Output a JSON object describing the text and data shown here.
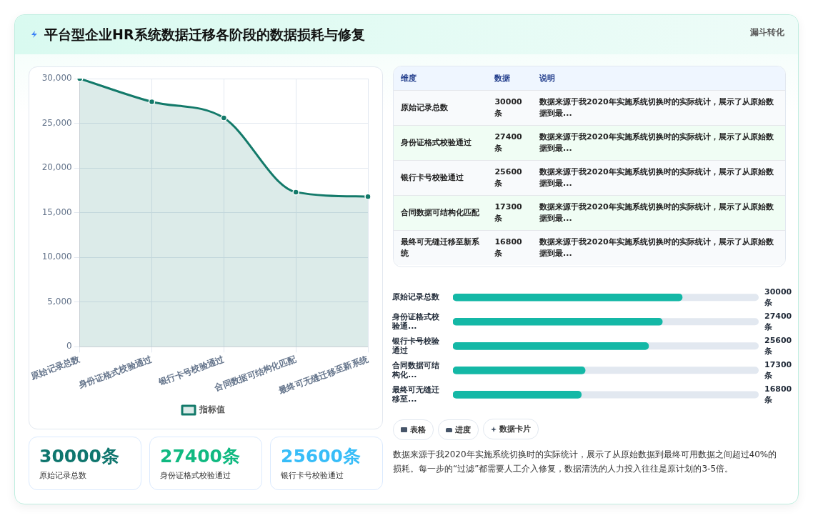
{
  "chart_data": [
    {
      "type": "area",
      "title": "平台型企业HR系统数据迁移各阶段的数据损耗与修复",
      "annotations": [
        "漏斗转化"
      ],
      "categories": [
        "原始记录总数",
        "身份证格式校验通过",
        "银行卡号校验通过",
        "合同数据可结构化匹配",
        "最终可无缝迁移至新系统"
      ],
      "series": [
        {
          "name": "指标值",
          "color": "#137a6a",
          "values": [
            30000,
            27400,
            25600,
            17300,
            16800
          ]
        }
      ],
      "ylim": [
        0,
        30000
      ],
      "yticks": [
        {
          "value": 0,
          "label": "0"
        },
        {
          "value": 5000,
          "label": "5,000"
        },
        {
          "value": 10000,
          "label": "10,000"
        },
        {
          "value": 15000,
          "label": "15,000"
        },
        {
          "value": 20000,
          "label": "20,000"
        },
        {
          "value": 25000,
          "label": "25,000"
        },
        {
          "value": 30000,
          "label": "30,000"
        }
      ],
      "grid": true,
      "legend": "bottom",
      "marker": "circle"
    },
    {
      "type": "other",
      "categories": [
        "维度",
        "数据",
        "说明"
      ],
      "annotations": [
        "原始记录总数",
        "30000条",
        "数据来源于我2020年实施系统切换时的实际统计，展示了从原始数据到最...",
        "身份证格式校验通过",
        "27400条",
        "数据来源于我2020年实施系统切换时的实际统计，展示了从原始数据到最...",
        "银行卡号校验通过",
        "25600条",
        "数据来源于我2020年实施系统切换时的实际统计，展示了从原始数据到最...",
        "合同数据可结构化匹配",
        "17300条",
        "数据来源于我2020年实施系统切换时的实际统计，展示了从原始数据到最...",
        "最终可无缝迁移至新系统",
        "16800条",
        "数据来源于我2020年实施系统切换时的实际统计，展示了从原始数据到最..."
      ]
    },
    {
      "type": "bar",
      "orientation": "horizontal",
      "categories": [
        "原始记录总数",
        "身份证格式校验通...",
        "银行卡号校验通过",
        "合同数据可结构化...",
        "最终可无缝迁移至..."
      ],
      "values": [
        30000,
        27400,
        25600,
        17300,
        16800
      ],
      "color": "#14b8a6",
      "xlim": [
        0,
        40000
      ],
      "value_labels": [
        "30000条",
        "27400条",
        "25600条",
        "17300条",
        "16800条"
      ],
      "tick_labels": "y",
      "grid": false
    },
    {
      "type": "other",
      "annotations": [
        "表格",
        "进度",
        "数据卡片",
        "数据来源于我2020年实施系统切换时的实际统计，展示了从原始数据到最终可用数据之间超过40%的损耗。每一步的“过滤”都需要人工介入修复，数据清洗的人力投入往往是原计划的3-5倍。"
      ]
    },
    {
      "type": "other",
      "annotations": [
        "30000条",
        "原始记录总数",
        "27400条",
        "身份证格式校验通过",
        "25600条",
        "银行卡号校验通过"
      ],
      "colors": [
        "#0f766e",
        "#10b981",
        "#38bdf8"
      ]
    }
  ]
}
